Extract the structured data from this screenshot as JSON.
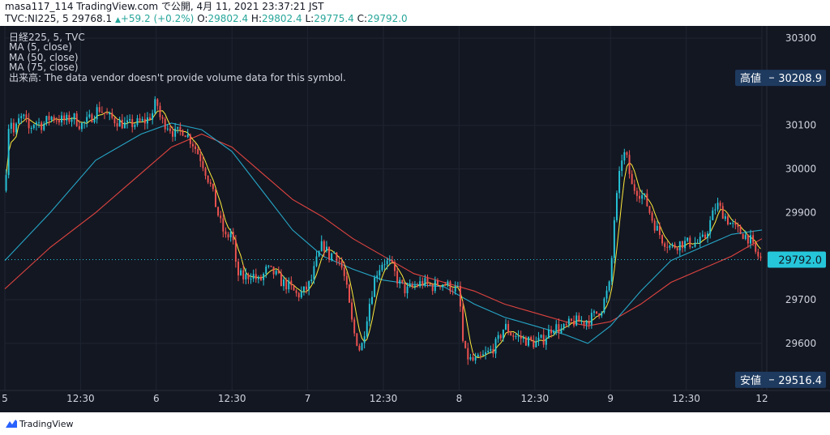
{
  "header": {
    "line1": "masa117_114 TradingView.com で公開, 4月 11, 2021 23:37:21 JST",
    "symbol": "TVC:NI225, 5",
    "last": "29768.1",
    "change_arrow": "▲",
    "change": "+59.2 (+0.2%)",
    "o_label": "O:",
    "o_value": "29802.4",
    "h_label": "H:",
    "h_value": "29802.4",
    "l_label": "L:",
    "l_value": "29775.4",
    "c_label": "C:",
    "c_value": "29792.0"
  },
  "legend": {
    "title": "日経225, 5, TVC",
    "ma5": "MA (5, close)",
    "ma50": "MA (50, close)",
    "ma75": "MA (75, close)",
    "volume": "出来高: The data vendor doesn't provide volume data for this symbol."
  },
  "labels": {
    "high_text": "高値",
    "high_value": "30208.9",
    "low_text": "安値",
    "low_value": "29516.4",
    "last_value": "29792.0"
  },
  "footer": {
    "brand": "TradingView"
  },
  "colors": {
    "background": "#131722",
    "up": "#26c6da",
    "down": "#ef5350",
    "ma5": "#ffeb3b",
    "ma50": "#26a6c6",
    "ma75": "#e0443f",
    "label_bg": "#1e3a5f",
    "last_bg": "#26c6da"
  },
  "chart_data": {
    "type": "candlestick",
    "ylim": [
      29492,
      30328
    ],
    "y_ticks": [
      30300,
      30100,
      30000,
      29900,
      29700,
      29600
    ],
    "x_ticks": [
      {
        "x": 0,
        "label": "5"
      },
      {
        "x": 0.5,
        "label": "12:30"
      },
      {
        "x": 1,
        "label": "6"
      },
      {
        "x": 1.5,
        "label": "12:30"
      },
      {
        "x": 2,
        "label": "7"
      },
      {
        "x": 2.5,
        "label": "12:30"
      },
      {
        "x": 3,
        "label": "8"
      },
      {
        "x": 3.5,
        "label": "12:30"
      },
      {
        "x": 4,
        "label": "9"
      },
      {
        "x": 4.5,
        "label": "12:30"
      },
      {
        "x": 5,
        "label": "12"
      }
    ],
    "x_range": [
      0,
      5
    ],
    "highest": 30208.9,
    "lowest": 29516.4,
    "last": 29792.0,
    "close_path": [
      [
        0.0,
        29950
      ],
      [
        0.03,
        30130
      ],
      [
        0.06,
        30080
      ],
      [
        0.09,
        30110
      ],
      [
        0.12,
        30120
      ],
      [
        0.16,
        30090
      ],
      [
        0.2,
        30110
      ],
      [
        0.25,
        30100
      ],
      [
        0.3,
        30120
      ],
      [
        0.35,
        30115
      ],
      [
        0.4,
        30110
      ],
      [
        0.45,
        30120
      ],
      [
        0.5,
        30100
      ],
      [
        0.55,
        30110
      ],
      [
        0.62,
        30140
      ],
      [
        0.68,
        30120
      ],
      [
        0.74,
        30110
      ],
      [
        0.8,
        30100
      ],
      [
        0.87,
        30105
      ],
      [
        0.93,
        30110
      ],
      [
        0.98,
        30130
      ],
      [
        1.0,
        30160
      ],
      [
        1.03,
        30110
      ],
      [
        1.08,
        30100
      ],
      [
        1.12,
        30080
      ],
      [
        1.18,
        30090
      ],
      [
        1.24,
        30060
      ],
      [
        1.3,
        30020
      ],
      [
        1.36,
        29960
      ],
      [
        1.42,
        29880
      ],
      [
        1.46,
        29840
      ],
      [
        1.5,
        29860
      ],
      [
        1.53,
        29760
      ],
      [
        1.58,
        29750
      ],
      [
        1.63,
        29760
      ],
      [
        1.68,
        29740
      ],
      [
        1.73,
        29770
      ],
      [
        1.78,
        29760
      ],
      [
        1.83,
        29740
      ],
      [
        1.88,
        29730
      ],
      [
        1.93,
        29710
      ],
      [
        1.98,
        29720
      ],
      [
        2.02,
        29740
      ],
      [
        2.06,
        29790
      ],
      [
        2.1,
        29830
      ],
      [
        2.14,
        29800
      ],
      [
        2.18,
        29810
      ],
      [
        2.22,
        29780
      ],
      [
        2.25,
        29740
      ],
      [
        2.3,
        29630
      ],
      [
        2.35,
        29580
      ],
      [
        2.4,
        29680
      ],
      [
        2.45,
        29760
      ],
      [
        2.5,
        29790
      ],
      [
        2.55,
        29780
      ],
      [
        2.6,
        29740
      ],
      [
        2.65,
        29720
      ],
      [
        2.7,
        29730
      ],
      [
        2.76,
        29740
      ],
      [
        2.82,
        29730
      ],
      [
        2.88,
        29740
      ],
      [
        2.94,
        29730
      ],
      [
        3.0,
        29720
      ],
      [
        3.03,
        29580
      ],
      [
        3.08,
        29560
      ],
      [
        3.12,
        29560
      ],
      [
        3.16,
        29570
      ],
      [
        3.2,
        29580
      ],
      [
        3.25,
        29600
      ],
      [
        3.3,
        29640
      ],
      [
        3.35,
        29620
      ],
      [
        3.42,
        29610
      ],
      [
        3.5,
        29600
      ],
      [
        3.56,
        29610
      ],
      [
        3.62,
        29640
      ],
      [
        3.68,
        29630
      ],
      [
        3.75,
        29650
      ],
      [
        3.82,
        29650
      ],
      [
        3.88,
        29660
      ],
      [
        3.94,
        29680
      ],
      [
        4.0,
        29740
      ],
      [
        4.02,
        29870
      ],
      [
        4.05,
        29960
      ],
      [
        4.08,
        30040
      ],
      [
        4.11,
        30020
      ],
      [
        4.14,
        29960
      ],
      [
        4.18,
        29950
      ],
      [
        4.23,
        29930
      ],
      [
        4.28,
        29880
      ],
      [
        4.34,
        29840
      ],
      [
        4.4,
        29820
      ],
      [
        4.46,
        29830
      ],
      [
        4.52,
        29830
      ],
      [
        4.58,
        29830
      ],
      [
        4.62,
        29840
      ],
      [
        4.66,
        29880
      ],
      [
        4.7,
        29920
      ],
      [
        4.74,
        29900
      ],
      [
        4.78,
        29880
      ],
      [
        4.83,
        29860
      ],
      [
        4.88,
        29850
      ],
      [
        4.92,
        29840
      ],
      [
        4.95,
        29810
      ],
      [
        5.0,
        29790
      ]
    ],
    "ma_paths": {
      "ma50": [
        [
          0.0,
          29790
        ],
        [
          0.3,
          29900
        ],
        [
          0.6,
          30020
        ],
        [
          0.9,
          30080
        ],
        [
          1.1,
          30105
        ],
        [
          1.3,
          30090
        ],
        [
          1.5,
          30040
        ],
        [
          1.7,
          29950
        ],
        [
          1.9,
          29860
        ],
        [
          2.1,
          29800
        ],
        [
          2.3,
          29770
        ],
        [
          2.5,
          29745
        ],
        [
          2.7,
          29735
        ],
        [
          2.9,
          29730
        ],
        [
          3.1,
          29690
        ],
        [
          3.3,
          29660
        ],
        [
          3.5,
          29640
        ],
        [
          3.7,
          29620
        ],
        [
          3.85,
          29600
        ],
        [
          4.0,
          29640
        ],
        [
          4.2,
          29720
        ],
        [
          4.4,
          29790
        ],
        [
          4.6,
          29820
        ],
        [
          4.8,
          29850
        ],
        [
          5.0,
          29860
        ]
      ],
      "ma75": [
        [
          0.0,
          29725
        ],
        [
          0.3,
          29820
        ],
        [
          0.6,
          29900
        ],
        [
          0.9,
          29990
        ],
        [
          1.1,
          30050
        ],
        [
          1.3,
          30080
        ],
        [
          1.5,
          30050
        ],
        [
          1.7,
          29990
        ],
        [
          1.9,
          29930
        ],
        [
          2.1,
          29890
        ],
        [
          2.3,
          29840
        ],
        [
          2.5,
          29800
        ],
        [
          2.7,
          29760
        ],
        [
          2.9,
          29740
        ],
        [
          3.1,
          29720
        ],
        [
          3.3,
          29690
        ],
        [
          3.5,
          29670
        ],
        [
          3.7,
          29650
        ],
        [
          3.85,
          29640
        ],
        [
          4.0,
          29650
        ],
        [
          4.2,
          29690
        ],
        [
          4.4,
          29740
        ],
        [
          4.6,
          29770
        ],
        [
          4.8,
          29800
        ],
        [
          5.0,
          29840
        ]
      ]
    }
  }
}
